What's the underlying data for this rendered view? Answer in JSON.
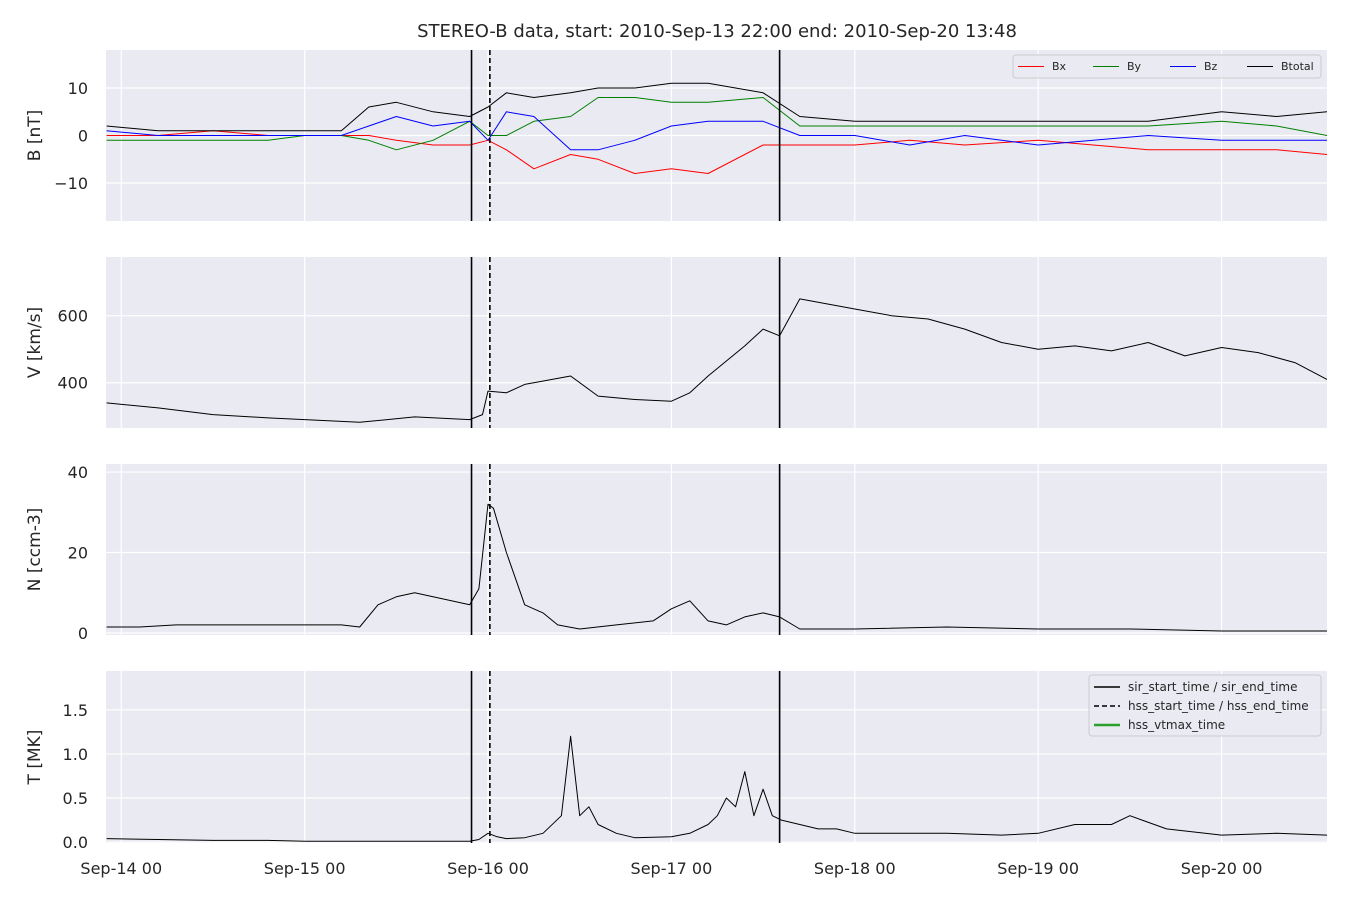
{
  "title": "STEREO-B data, start: 2010-Sep-13 22:00  end: 2010-Sep-20 13:48",
  "colors": {
    "panel_bg": "#EAEAF2",
    "grid": "#FFFFFF",
    "bx": "#FF0000",
    "by": "#008000",
    "bz": "#0000FF",
    "btotal": "#000000",
    "line": "#000000",
    "hss_vtmax": "#2CA02C"
  },
  "chart_data": {
    "type": "line",
    "x_unit": "days since 2010-Sep-14 00:00",
    "xlim": [
      -0.0833,
      6.575
    ],
    "xticks": [
      0,
      1,
      2,
      3,
      4,
      5,
      6
    ],
    "xtick_labels": [
      "Sep-14 00",
      "Sep-15 00",
      "Sep-16 00",
      "Sep-17 00",
      "Sep-18 00",
      "Sep-19 00",
      "Sep-20 00"
    ],
    "event_lines": [
      {
        "name": "sir_start_time / sir_end_time",
        "style": "solid",
        "x": [
          1.91,
          3.59
        ]
      },
      {
        "name": "hss_start_time / hss_end_time",
        "style": "dashed",
        "x": [
          2.01
        ]
      }
    ],
    "panels": [
      {
        "id": "mag",
        "ylabel": "B [nT]",
        "ylim": [
          -18,
          18
        ],
        "yticks": [
          -10,
          0,
          10
        ],
        "ytick_labels": [
          "−10",
          "0",
          "10"
        ],
        "legend": {
          "placement": "top-right",
          "columns": 4
        },
        "series": [
          {
            "name": "Bx",
            "color_key": "bx",
            "x": [
              -0.08,
              0.2,
              0.5,
              0.8,
              1.0,
              1.2,
              1.35,
              1.5,
              1.7,
              1.9,
              2.0,
              2.1,
              2.25,
              2.45,
              2.6,
              2.8,
              3.0,
              3.2,
              3.5,
              3.7,
              4.0,
              4.3,
              4.6,
              5.0,
              5.3,
              5.6,
              6.0,
              6.3,
              6.575
            ],
            "y": [
              0,
              0,
              1,
              0,
              0,
              0,
              0,
              -1,
              -2,
              -2,
              -1,
              -3,
              -7,
              -4,
              -5,
              -8,
              -7,
              -8,
              -2,
              -2,
              -2,
              -1,
              -2,
              -1,
              -2,
              -3,
              -3,
              -3,
              -4
            ]
          },
          {
            "name": "By",
            "color_key": "by",
            "x": [
              -0.08,
              0.2,
              0.5,
              0.8,
              1.0,
              1.2,
              1.35,
              1.5,
              1.7,
              1.9,
              2.0,
              2.1,
              2.25,
              2.45,
              2.6,
              2.8,
              3.0,
              3.2,
              3.5,
              3.7,
              4.0,
              4.3,
              4.6,
              5.0,
              5.3,
              5.6,
              6.0,
              6.3,
              6.575
            ],
            "y": [
              -1,
              -1,
              -1,
              -1,
              0,
              0,
              -1,
              -3,
              -1,
              3,
              0,
              0,
              3,
              4,
              8,
              8,
              7,
              7,
              8,
              2,
              2,
              2,
              2,
              2,
              2,
              2,
              3,
              2,
              0
            ]
          },
          {
            "name": "Bz",
            "color_key": "bz",
            "x": [
              -0.08,
              0.2,
              0.5,
              0.8,
              1.0,
              1.2,
              1.35,
              1.5,
              1.7,
              1.9,
              2.0,
              2.1,
              2.25,
              2.45,
              2.6,
              2.8,
              3.0,
              3.2,
              3.5,
              3.7,
              4.0,
              4.3,
              4.6,
              5.0,
              5.3,
              5.6,
              6.0,
              6.3,
              6.575
            ],
            "y": [
              1,
              0,
              0,
              0,
              0,
              0,
              2,
              4,
              2,
              3,
              -1,
              5,
              4,
              -3,
              -3,
              -1,
              2,
              3,
              3,
              0,
              0,
              -2,
              0,
              -2,
              -1,
              0,
              -1,
              -1,
              -1
            ]
          },
          {
            "name": "Btotal",
            "color_key": "btotal",
            "x": [
              -0.08,
              0.2,
              0.5,
              0.8,
              1.0,
              1.2,
              1.35,
              1.5,
              1.7,
              1.9,
              2.0,
              2.1,
              2.25,
              2.45,
              2.6,
              2.8,
              3.0,
              3.2,
              3.5,
              3.7,
              4.0,
              4.3,
              4.6,
              5.0,
              5.3,
              5.6,
              6.0,
              6.3,
              6.575
            ],
            "y": [
              2,
              1,
              1,
              1,
              1,
              1,
              6,
              7,
              5,
              4,
              6,
              9,
              8,
              9,
              10,
              10,
              11,
              11,
              9,
              4,
              3,
              3,
              3,
              3,
              3,
              3,
              5,
              4,
              5
            ]
          }
        ]
      },
      {
        "id": "speed",
        "ylabel": "V [km/s]",
        "ylim": [
          265,
          775
        ],
        "yticks": [
          400,
          600
        ],
        "ytick_labels": [
          "400",
          "600"
        ],
        "series": [
          {
            "name": "V",
            "color_key": "line",
            "x": [
              -0.08,
              0.2,
              0.5,
              0.8,
              1.0,
              1.3,
              1.6,
              1.9,
              1.97,
              2.0,
              2.1,
              2.2,
              2.35,
              2.45,
              2.6,
              2.8,
              3.0,
              3.1,
              3.2,
              3.4,
              3.5,
              3.59,
              3.7,
              3.8,
              4.0,
              4.2,
              4.4,
              4.6,
              4.8,
              5.0,
              5.2,
              5.4,
              5.6,
              5.8,
              6.0,
              6.2,
              6.4,
              6.575
            ],
            "y": [
              340,
              325,
              305,
              295,
              290,
              282,
              298,
              290,
              305,
              375,
              370,
              395,
              410,
              420,
              360,
              350,
              345,
              370,
              420,
              510,
              560,
              540,
              650,
              640,
              620,
              600,
              590,
              560,
              520,
              500,
              510,
              495,
              520,
              480,
              505,
              490,
              460,
              410
            ]
          }
        ]
      },
      {
        "id": "density",
        "ylabel": "N [ccm-3]",
        "ylim": [
          -0.5,
          42
        ],
        "yticks": [
          0,
          20,
          40
        ],
        "ytick_labels": [
          "0",
          "20",
          "40"
        ],
        "series": [
          {
            "name": "N",
            "color_key": "line",
            "x": [
              -0.08,
              0.1,
              0.3,
              0.6,
              0.9,
              1.2,
              1.3,
              1.4,
              1.5,
              1.6,
              1.7,
              1.8,
              1.9,
              1.95,
              2.0,
              2.03,
              2.1,
              2.2,
              2.3,
              2.38,
              2.5,
              2.7,
              2.9,
              3.0,
              3.1,
              3.2,
              3.3,
              3.4,
              3.5,
              3.59,
              3.7,
              4.0,
              4.5,
              5.0,
              5.5,
              6.0,
              6.3,
              6.575
            ],
            "y": [
              1.5,
              1.5,
              2,
              2,
              2,
              2,
              1.5,
              7,
              9,
              10,
              9,
              8,
              7,
              11,
              32,
              31,
              20,
              7,
              5,
              2,
              1,
              2,
              3,
              6,
              8,
              3,
              2,
              4,
              5,
              4,
              1,
              1,
              1.5,
              1,
              1,
              0.5,
              0.5,
              0.5
            ]
          }
        ]
      },
      {
        "id": "temperature",
        "ylabel": "T [MK]",
        "ylim": [
          -0.01,
          1.94
        ],
        "yticks": [
          0.0,
          0.5,
          1.0,
          1.5
        ],
        "ytick_labels": [
          "0.0",
          "0.5",
          "1.0",
          "1.5"
        ],
        "legend": {
          "placement": "top-right",
          "entries": [
            {
              "label": "sir_start_time / sir_end_time",
              "style": "solid",
              "color_key": "line"
            },
            {
              "label": "hss_start_time / hss_end_time",
              "style": "dashed",
              "color_key": "line"
            },
            {
              "label": "hss_vtmax_time",
              "style": "solid",
              "color_key": "hss_vtmax"
            }
          ]
        },
        "series": [
          {
            "name": "T",
            "color_key": "line",
            "x": [
              -0.08,
              0.2,
              0.5,
              0.8,
              1.0,
              1.3,
              1.6,
              1.9,
              1.95,
              2.0,
              2.05,
              2.1,
              2.2,
              2.3,
              2.4,
              2.45,
              2.5,
              2.55,
              2.6,
              2.7,
              2.8,
              3.0,
              3.1,
              3.2,
              3.25,
              3.3,
              3.35,
              3.4,
              3.45,
              3.5,
              3.55,
              3.6,
              3.7,
              3.8,
              3.9,
              4.0,
              4.5,
              4.8,
              5.0,
              5.2,
              5.4,
              5.5,
              5.7,
              6.0,
              6.3,
              6.575
            ],
            "y": [
              0.04,
              0.03,
              0.02,
              0.02,
              0.01,
              0.01,
              0.01,
              0.01,
              0.03,
              0.1,
              0.06,
              0.04,
              0.05,
              0.1,
              0.3,
              1.2,
              0.3,
              0.4,
              0.2,
              0.1,
              0.05,
              0.06,
              0.1,
              0.2,
              0.3,
              0.5,
              0.4,
              0.8,
              0.3,
              0.6,
              0.3,
              0.25,
              0.2,
              0.15,
              0.15,
              0.1,
              0.1,
              0.08,
              0.1,
              0.2,
              0.2,
              0.3,
              0.15,
              0.08,
              0.1,
              0.08
            ]
          }
        ]
      }
    ]
  }
}
